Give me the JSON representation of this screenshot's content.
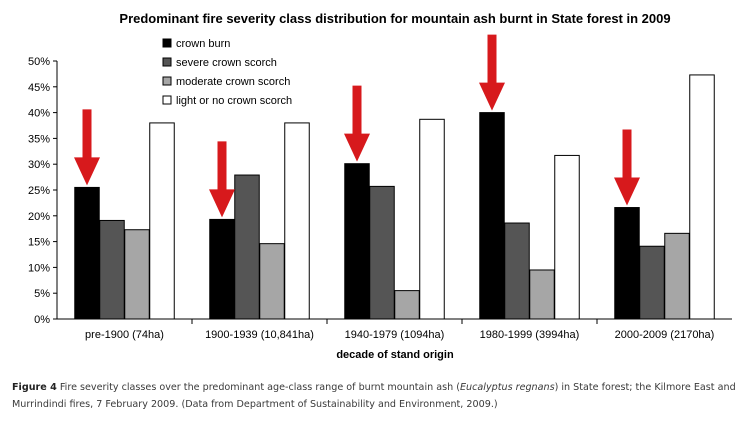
{
  "chart_data": {
    "type": "bar",
    "title": "Predominant fire severity class distribution for mountain ash burnt in State forest in 2009",
    "xlabel": "decade of stand origin",
    "ylabel": "",
    "ylim": [
      0,
      50
    ],
    "yticks": [
      "0%",
      "5%",
      "10%",
      "15%",
      "20%",
      "25%",
      "30%",
      "35%",
      "40%",
      "45%",
      "50%"
    ],
    "categories": [
      "pre-1900 (74ha)",
      "1900-1939 (10,841ha)",
      "1940-1979 (1094ha)",
      "1980-1999 (3994ha)",
      "2000-2009 (2170ha)"
    ],
    "series": [
      {
        "name": "crown burn",
        "color": "#000000",
        "values": [
          25.5,
          19.3,
          30.1,
          40.0,
          21.6
        ]
      },
      {
        "name": "severe crown scorch",
        "color": "#555555",
        "values": [
          19.1,
          27.9,
          25.7,
          18.6,
          14.1
        ]
      },
      {
        "name": "moderate crown scorch",
        "color": "#a6a6a6",
        "values": [
          17.3,
          14.6,
          5.5,
          9.5,
          16.6
        ]
      },
      {
        "name": "light or no crown scorch",
        "color": "#ffffff",
        "values": [
          38.0,
          38.0,
          38.7,
          31.7,
          47.3
        ]
      }
    ],
    "legend_position": "top-left",
    "grid": false,
    "annotations": "red downward arrows pointing at the crown burn bar in each category",
    "arrow_color": "#d7191c"
  },
  "caption": {
    "label": "Figure 4",
    "text_before": " Fire severity classes over the predominant age-class range of burnt mountain ash (",
    "species": "Eucalyptus regnans",
    "text_after": ") in State forest; the Kilmore East and Murrindindi fires, 7 February 2009. (Data from Department of Sustainability and Environment, 2009.)"
  }
}
